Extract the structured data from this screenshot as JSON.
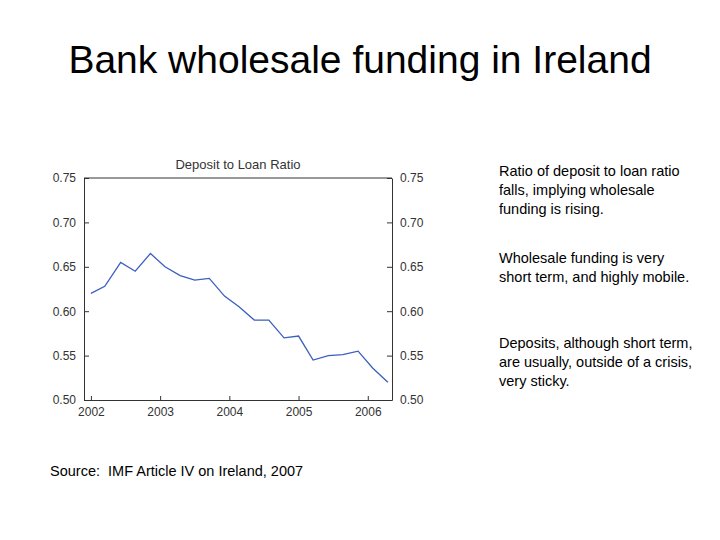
{
  "slide": {
    "title": "Bank wholesale funding in Ireland",
    "notes": [
      "Ratio of deposit to loan ratio falls, implying wholesale funding is rising.",
      "Wholesale funding is very short term, and highly mobile.",
      "Deposits, although short term, are usually, outside of a crisis, very sticky."
    ],
    "source": "Source:  IMF Article IV on Ireland, 2007"
  },
  "chart_data": {
    "type": "line",
    "title": "Deposit to Loan Ratio",
    "color": "#3b5fc0",
    "x": [
      2002.0,
      2002.2,
      2002.43,
      2002.64,
      2002.86,
      2003.07,
      2003.29,
      2003.5,
      2003.71,
      2003.93,
      2004.14,
      2004.36,
      2004.57,
      2004.79,
      2005.0,
      2005.21,
      2005.43,
      2005.64,
      2005.86,
      2006.07,
      2006.29
    ],
    "values": [
      0.62,
      0.628,
      0.655,
      0.645,
      0.665,
      0.65,
      0.64,
      0.635,
      0.637,
      0.617,
      0.605,
      0.59,
      0.59,
      0.57,
      0.572,
      0.545,
      0.55,
      0.551,
      0.555,
      0.536,
      0.52
    ],
    "xlim": [
      2001.9,
      2006.35
    ],
    "xticks": [
      2002,
      2003,
      2004,
      2005,
      2006
    ],
    "ylim": [
      0.5,
      0.75
    ],
    "yticks": [
      {
        "value": 0.5,
        "label": "0.50"
      },
      {
        "value": 0.55,
        "label": "0.55"
      },
      {
        "value": 0.6,
        "label": "0.60"
      },
      {
        "value": 0.65,
        "label": "0.65"
      },
      {
        "value": 0.7,
        "label": "0.70"
      },
      {
        "value": 0.75,
        "label": "0.75"
      }
    ],
    "grid": false
  }
}
